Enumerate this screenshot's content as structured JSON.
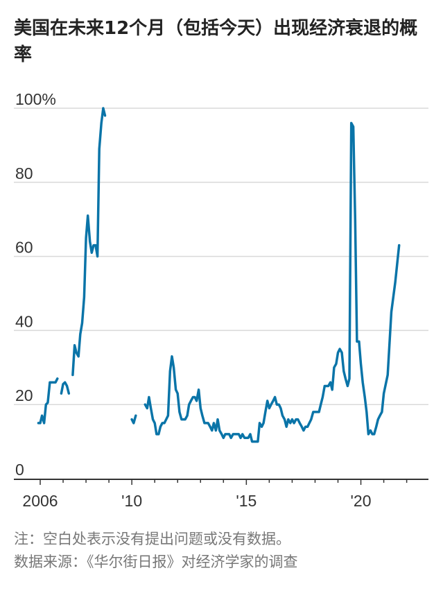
{
  "title": "美国在未来12个月（包括今天）出现经济衰退的概率",
  "note": "注：空白处表示没有提出问题或没有数据。",
  "source": "数据来源：《华尔街日报》对经济学家的调查",
  "colors": {
    "line": "#0a74a8",
    "grid": "#d9d9d9",
    "axis": "#333333",
    "text": "#333333",
    "note": "#777777"
  },
  "chart_data": {
    "type": "line",
    "title": "美国在未来12个月（包括今天）出现经济衰退的概率",
    "xlabel": "",
    "ylabel": "",
    "ylim": [
      0,
      100
    ],
    "xlim": [
      2004.85,
      2022.95
    ],
    "grid": true,
    "yticks": [
      {
        "value": 0,
        "label": "0"
      },
      {
        "value": 20,
        "label": "20"
      },
      {
        "value": 40,
        "label": "40"
      },
      {
        "value": 60,
        "label": "60"
      },
      {
        "value": 80,
        "label": "80"
      },
      {
        "value": 100,
        "label": "100%"
      }
    ],
    "xticks": [
      {
        "value": 2006,
        "label": "2006"
      },
      {
        "value": 2010,
        "label": "'10"
      },
      {
        "value": 2015,
        "label": "'15"
      },
      {
        "value": 2020,
        "label": "'20"
      }
    ],
    "series": [
      {
        "segments": [
          [
            [
              2005.92,
              15
            ],
            [
              2006.0,
              15
            ],
            [
              2006.08,
              17
            ],
            [
              2006.17,
              15
            ],
            [
              2006.25,
              20
            ],
            [
              2006.33,
              20.5
            ],
            [
              2006.42,
              26
            ],
            [
              2006.5,
              26
            ],
            [
              2006.58,
              26
            ],
            [
              2006.67,
              26
            ],
            [
              2006.75,
              27
            ]
          ],
          [
            [
              2006.92,
              23
            ],
            [
              2007.0,
              25.5
            ],
            [
              2007.08,
              26
            ],
            [
              2007.17,
              25
            ],
            [
              2007.25,
              23
            ]
          ],
          [
            [
              2007.42,
              28
            ],
            [
              2007.5,
              36
            ],
            [
              2007.58,
              34
            ],
            [
              2007.67,
              33
            ],
            [
              2007.75,
              39
            ],
            [
              2007.83,
              42
            ],
            [
              2007.92,
              49
            ],
            [
              2008.0,
              65
            ],
            [
              2008.08,
              71
            ],
            [
              2008.17,
              64
            ],
            [
              2008.25,
              61
            ],
            [
              2008.33,
              63
            ],
            [
              2008.42,
              63
            ],
            [
              2008.5,
              60
            ],
            [
              2008.58,
              89
            ],
            [
              2008.67,
              96
            ],
            [
              2008.75,
              100
            ],
            [
              2008.83,
              98
            ]
          ]
        ]
      },
      {
        "segments": [
          [
            [
              2010.0,
              16
            ],
            [
              2010.08,
              15
            ],
            [
              2010.17,
              17
            ]
          ],
          [
            [
              2010.58,
              20
            ],
            [
              2010.67,
              19
            ],
            [
              2010.75,
              22
            ],
            [
              2010.83,
              19
            ],
            [
              2010.92,
              16
            ],
            [
              2011.0,
              15
            ],
            [
              2011.08,
              12
            ],
            [
              2011.17,
              12
            ],
            [
              2011.25,
              14
            ],
            [
              2011.33,
              15
            ],
            [
              2011.42,
              15
            ],
            [
              2011.5,
              16
            ],
            [
              2011.58,
              17
            ],
            [
              2011.67,
              29
            ],
            [
              2011.75,
              33
            ],
            [
              2011.83,
              30
            ],
            [
              2011.92,
              24
            ],
            [
              2012.0,
              23
            ],
            [
              2012.08,
              18
            ],
            [
              2012.17,
              16
            ],
            [
              2012.25,
              16
            ],
            [
              2012.33,
              16
            ],
            [
              2012.42,
              17
            ],
            [
              2012.5,
              20
            ],
            [
              2012.58,
              21
            ],
            [
              2012.67,
              22
            ],
            [
              2012.75,
              22
            ],
            [
              2012.83,
              21
            ],
            [
              2012.92,
              24
            ],
            [
              2013.0,
              19
            ],
            [
              2013.08,
              17
            ],
            [
              2013.17,
              15
            ],
            [
              2013.25,
              15
            ],
            [
              2013.33,
              15
            ],
            [
              2013.42,
              14
            ],
            [
              2013.5,
              13
            ],
            [
              2013.58,
              15
            ],
            [
              2013.67,
              13
            ],
            [
              2013.75,
              16
            ],
            [
              2013.83,
              13
            ],
            [
              2013.92,
              12
            ],
            [
              2014.0,
              11
            ],
            [
              2014.08,
              12
            ],
            [
              2014.17,
              12
            ],
            [
              2014.25,
              12
            ],
            [
              2014.33,
              11
            ],
            [
              2014.42,
              12
            ],
            [
              2014.5,
              12
            ],
            [
              2014.58,
              12
            ],
            [
              2014.67,
              12
            ],
            [
              2014.75,
              11
            ],
            [
              2014.83,
              12
            ],
            [
              2014.92,
              11
            ],
            [
              2015.0,
              11
            ],
            [
              2015.08,
              11
            ],
            [
              2015.17,
              12
            ],
            [
              2015.25,
              10
            ],
            [
              2015.33,
              10
            ],
            [
              2015.42,
              10
            ],
            [
              2015.5,
              10
            ],
            [
              2015.58,
              15
            ],
            [
              2015.67,
              14
            ],
            [
              2015.75,
              15
            ],
            [
              2015.83,
              18
            ],
            [
              2015.92,
              21
            ],
            [
              2016.0,
              19
            ],
            [
              2016.08,
              20
            ],
            [
              2016.17,
              21
            ],
            [
              2016.25,
              22
            ],
            [
              2016.33,
              20
            ],
            [
              2016.42,
              20
            ],
            [
              2016.5,
              19
            ],
            [
              2016.58,
              17
            ],
            [
              2016.67,
              16
            ],
            [
              2016.75,
              14
            ],
            [
              2016.83,
              16
            ],
            [
              2016.92,
              15
            ],
            [
              2017.0,
              16
            ],
            [
              2017.08,
              15
            ],
            [
              2017.17,
              16
            ],
            [
              2017.25,
              16
            ],
            [
              2017.33,
              15
            ],
            [
              2017.42,
              14
            ],
            [
              2017.5,
              13
            ],
            [
              2017.58,
              14
            ],
            [
              2017.67,
              14
            ],
            [
              2017.75,
              15
            ],
            [
              2017.83,
              16
            ],
            [
              2017.92,
              18
            ],
            [
              2018.0,
              18
            ],
            [
              2018.08,
              18
            ],
            [
              2018.17,
              18
            ],
            [
              2018.25,
              20
            ],
            [
              2018.33,
              22
            ],
            [
              2018.42,
              25
            ],
            [
              2018.5,
              25
            ],
            [
              2018.58,
              25
            ],
            [
              2018.67,
              26
            ],
            [
              2018.75,
              24
            ],
            [
              2018.83,
              30
            ],
            [
              2018.92,
              31
            ],
            [
              2019.0,
              34
            ],
            [
              2019.08,
              35
            ],
            [
              2019.17,
              34
            ],
            [
              2019.25,
              29
            ],
            [
              2019.33,
              27
            ],
            [
              2019.42,
              25
            ],
            [
              2019.5,
              27
            ],
            [
              2019.58,
              96
            ],
            [
              2019.67,
              95
            ],
            [
              2019.75,
              70
            ],
            [
              2019.83,
              37
            ],
            [
              2019.92,
              37
            ],
            [
              2020.0,
              31
            ],
            [
              2020.08,
              26
            ],
            [
              2020.17,
              22
            ],
            [
              2020.25,
              18
            ],
            [
              2020.33,
              12
            ],
            [
              2020.42,
              13
            ],
            [
              2020.5,
              12
            ],
            [
              2020.58,
              12
            ],
            [
              2020.67,
              14
            ],
            [
              2020.75,
              16
            ],
            [
              2020.83,
              17
            ],
            [
              2020.92,
              18
            ],
            [
              2021.0,
              23
            ],
            [
              2021.17,
              28
            ],
            [
              2021.33,
              45
            ],
            [
              2021.5,
              53
            ],
            [
              2021.67,
              63
            ]
          ]
        ]
      }
    ]
  }
}
